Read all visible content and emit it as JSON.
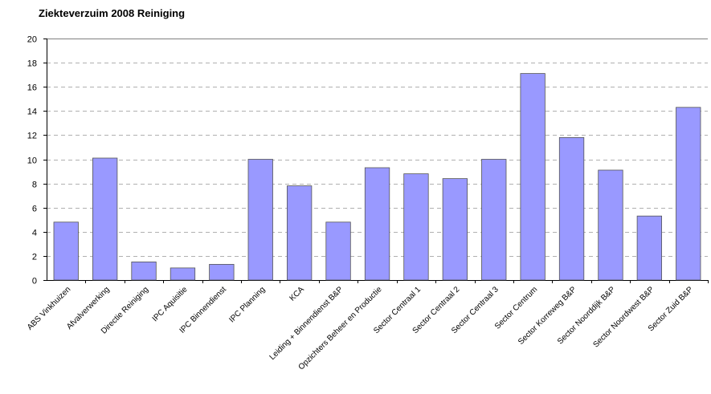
{
  "chart_data": {
    "type": "bar",
    "title": "Ziekteverzuim 2008 Reiniging",
    "xlabel": "",
    "ylabel": "",
    "ylim": [
      0,
      20
    ],
    "yticks": [
      0,
      2,
      4,
      6,
      8,
      10,
      12,
      14,
      16,
      18,
      20
    ],
    "grid": true,
    "legend": "none",
    "bar_color": "#9999FF",
    "bar_stroke": "#555555",
    "categories": [
      "ABS Vinkhuizen",
      "Afvalverwerking",
      "Directie Reiniging",
      "IPC Aquisitie",
      "IPC Binnendienst",
      "IPC Planning",
      "KCA",
      "Leiding + Binnendienst B&P",
      "Opzichters Beheer en Productie",
      "Sector Centraal 1",
      "Sector Centraal 2",
      "Sector Centraal 3",
      "Sector Centrum",
      "Sector Korreweg B&P",
      "Sector Noorddijk B&P",
      "Sector Noordwest B&P",
      "Sector Zuid B&P"
    ],
    "values": [
      4.8,
      10.1,
      1.5,
      1.0,
      1.3,
      10.0,
      7.8,
      4.8,
      9.3,
      8.8,
      8.4,
      10.0,
      17.1,
      11.8,
      9.1,
      5.3,
      14.3
    ]
  }
}
